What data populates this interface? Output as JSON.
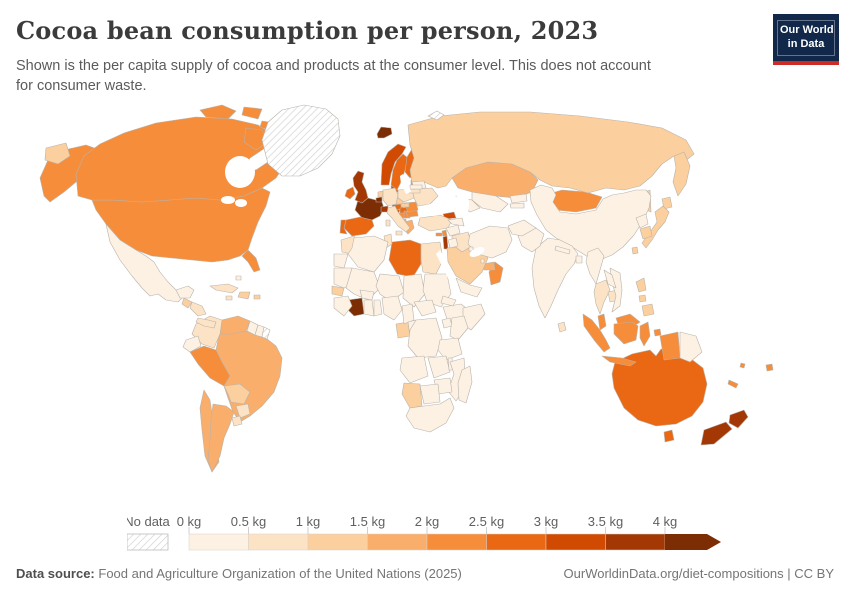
{
  "header": {
    "title": "Cocoa bean consumption per person, 2023",
    "subtitle": "Shown is the per capita supply of cocoa and products at the consumer level. This does not account for consumer waste.",
    "logo": {
      "line1": "Our World",
      "line2": "in Data",
      "bg_color": "#12284B",
      "accent_color": "#CD2B26"
    }
  },
  "legend": {
    "no_data_label": "No data",
    "tick_labels": [
      "0 kg",
      "0.5 kg",
      "1 kg",
      "1.5 kg",
      "2 kg",
      "2.5 kg",
      "3 kg",
      "3.5 kg",
      "4 kg"
    ]
  },
  "footer": {
    "source_label": "Data source:",
    "source_text": "Food and Agriculture Organization of the United Nations (2025)",
    "attribution": "OurWorldinData.org/diet-compositions | CC BY"
  },
  "chart_data": {
    "type": "choropleth-map",
    "title": "Cocoa bean consumption per person, 2023",
    "unit": "kg per person per year",
    "legend_position": "bottom",
    "bins": [
      "0-0.5",
      "0.5-1",
      "1-1.5",
      "1.5-2",
      "2-2.5",
      "2.5-3",
      "3-3.5",
      "3.5-4",
      "4+"
    ],
    "palette": {
      "0-0.5": "#fdf1e4",
      "0.5-1": "#fde3c5",
      "1-1.5": "#fbcf9e",
      "1.5-2": "#faae6b",
      "2-2.5": "#f68d3b",
      "2.5-3": "#ea6814",
      "3-3.5": "#d14a02",
      "3.5-4": "#a33805",
      "4+": "#7c2d04"
    },
    "border_color": "#b9b3aa",
    "no_data": [
      "Greenland",
      "French Guiana",
      "Svalbard"
    ],
    "values": {
      "France": "4+",
      "Belgium": "4+",
      "Iceland": "4+",
      "Côte d'Ivoire": "4+",
      "United Kingdom": "3.5-4",
      "Switzerland": "3.5-4",
      "New Zealand": "3.5-4",
      "Israel": "3.5-4",
      "Norway": "3-3.5",
      "Denmark": "3-3.5",
      "Croatia": "3-3.5",
      "Georgia": "3-3.5",
      "Australia": "2.5-3",
      "Sweden": "2.5-3",
      "Finland": "2.5-3",
      "Ireland": "2.5-3",
      "Spain": "2.5-3",
      "Portugal": "2.5-3",
      "Austria": "2.5-3",
      "Libya": "2.5-3",
      "Hungary": "2.5-3",
      "United States": "2-2.5",
      "Canada": "2-2.5",
      "Mongolia": "2-2.5",
      "Oman": "2-2.5",
      "Peru": "2-2.5",
      "Malaysia": "2-2.5",
      "Indonesia": "2-2.5",
      "Serbia": "2-2.5",
      "Bosnia and Herzegovina": "2-2.5",
      "Bulgaria": "2-2.5",
      "Romania": "2-2.5",
      "Estonia": "2-2.5",
      "Lebanon": "2-2.5",
      "Cyprus": "2-2.5",
      "New Caledonia": "2-2.5",
      "Fiji": "2-2.5",
      "Solomon Islands": "2-2.5",
      "Kazakhstan": "1.5-2",
      "Chile": "1.5-2",
      "Greece": "1.5-2",
      "Albania": "1.5-2",
      "United Arab Emirates": "1.5-2",
      "Brazil": "1.5-2",
      "Argentina": "1.5-2",
      "Venezuela": "1.5-2",
      "Russia": "1-1.5",
      "Saudi Arabia": "1-1.5",
      "Japan": "1-1.5",
      "South Korea": "1-1.5",
      "Philippines": "1-1.5",
      "Bolivia": "1-1.5",
      "Senegal": "1-1.5",
      "Namibia": "1-1.5",
      "Gabon": "1-1.5",
      "Netherlands": "1-1.5",
      "Czechia": "1-1.5",
      "Slovakia": "1-1.5",
      "Dominican Republic": "1-1.5",
      "Guatemala": "1-1.5",
      "Taiwan": "1-1.5",
      "Puerto Rico": "1-1.5",
      "Colombia": "0.5-1",
      "Turkey": "0.5-1",
      "Egypt": "0.5-1",
      "Ukraine": "0.5-1",
      "Italy": "0.5-1",
      "Germany": "0.5-1",
      "Poland": "0.5-1",
      "Morocco": "0.5-1",
      "Thailand": "0.5-1",
      "Cambodia": "0.5-1",
      "Sri Lanka": "0.5-1",
      "Cuba": "0.5-1",
      "Iraq": "0.5-1",
      "Tunisia": "0.5-1",
      "Jamaica": "0.5-1",
      "Panama": "0.5-1",
      "Lithuania": "0.5-1",
      "Paraguay": "0.5-1",
      "Uruguay": "0.5-1",
      "Honduras": "0.5-1",
      "Mexico": "0-0.5",
      "China": "0-0.5",
      "India": "0-0.5",
      "Pakistan": "0-0.5",
      "Afghanistan": "0-0.5",
      "Iran": "0-0.5",
      "Mauritania": "0-0.5",
      "Mali": "0-0.5",
      "Niger": "0-0.5",
      "Chad": "0-0.5",
      "Sudan": "0-0.5",
      "Nigeria": "0-0.5",
      "Ghana": "0-0.5",
      "Benin": "0-0.5",
      "Burkina Faso": "0-0.5",
      "Guinea": "0-0.5",
      "Cameroon": "0-0.5",
      "Central African Republic": "0-0.5",
      "Congo": "0-0.5",
      "DR Congo": "0-0.5",
      "Ethiopia": "0-0.5",
      "Eritrea": "0-0.5",
      "Somalia": "0-0.5",
      "Uganda": "0-0.5",
      "Kenya": "0-0.5",
      "Tanzania": "0-0.5",
      "Angola": "0-0.5",
      "Zambia": "0-0.5",
      "Malawi": "0-0.5",
      "Mozambique": "0-0.5",
      "Zimbabwe": "0-0.5",
      "Botswana": "0-0.5",
      "South Africa": "0-0.5",
      "Madagascar": "0-0.5",
      "Western Sahara": "0-0.5",
      "Algeria": "0-0.5",
      "Yemen": "0-0.5",
      "Syria": "0-0.5",
      "Jordan": "0-0.5",
      "Kuwait": "0-0.5",
      "Qatar": "0-0.5",
      "Azerbaijan": "0-0.5",
      "Turkmenistan": "0-0.5",
      "Uzbekistan": "0-0.5",
      "Kyrgyzstan": "0-0.5",
      "Tajikistan": "0-0.5",
      "Nepal": "0-0.5",
      "Bangladesh": "0-0.5",
      "Myanmar": "0-0.5",
      "Vietnam": "0-0.5",
      "Laos": "0-0.5",
      "North Korea": "0-0.5",
      "Belarus": "0-0.5",
      "Latvia": "0-0.5",
      "Guyana": "0-0.5",
      "Suriname": "0-0.5",
      "Ecuador": "0-0.5",
      "Papua New Guinea": "0-0.5",
      "Bahamas": "0-0.5"
    }
  }
}
